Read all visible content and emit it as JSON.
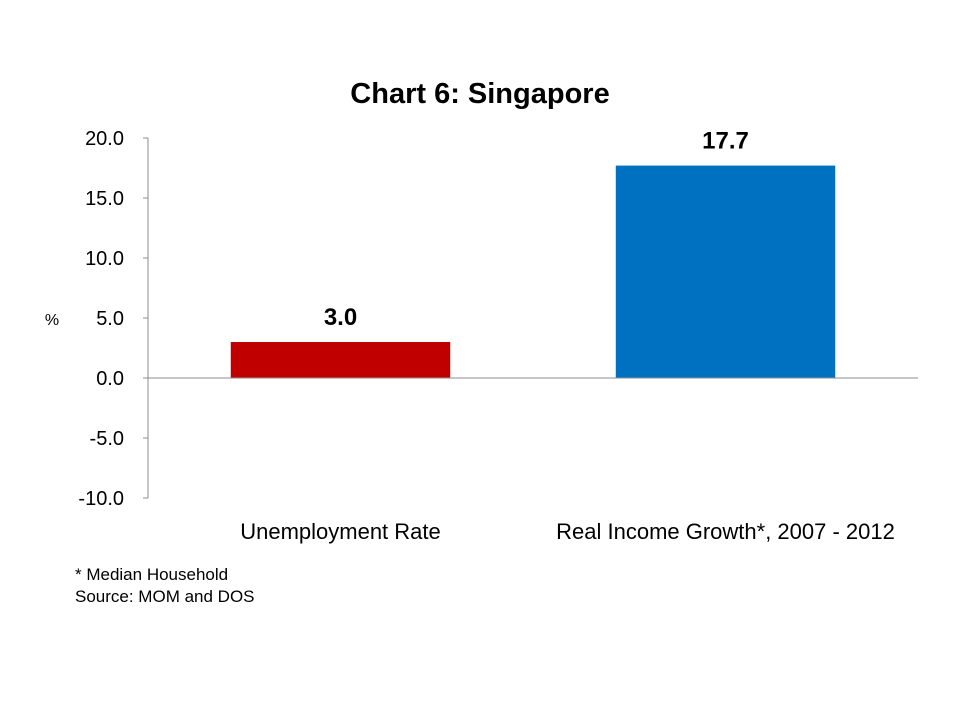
{
  "chart_data": {
    "type": "bar",
    "title": "Chart 6: Singapore",
    "ylabel": "%",
    "xlabel": "",
    "categories": [
      "Unemployment Rate",
      "Real Income Growth*, 2007 - 2012"
    ],
    "values": [
      3.0,
      17.7
    ],
    "data_labels": [
      "3.0",
      "17.7"
    ],
    "bar_colors": [
      "#C00000",
      "#0070C0"
    ],
    "ylim": [
      -10,
      20
    ],
    "yticks": [
      20,
      15,
      10,
      5,
      0,
      -5,
      -10
    ],
    "ytick_labels": [
      "20.0",
      "15.0",
      "10.0",
      "5.0",
      "0.0",
      "-5.0",
      "-10.0"
    ],
    "grid": false,
    "legend": "none"
  },
  "notes": {
    "footnote": "* Median Household",
    "source": "Source: MOM and DOS"
  }
}
